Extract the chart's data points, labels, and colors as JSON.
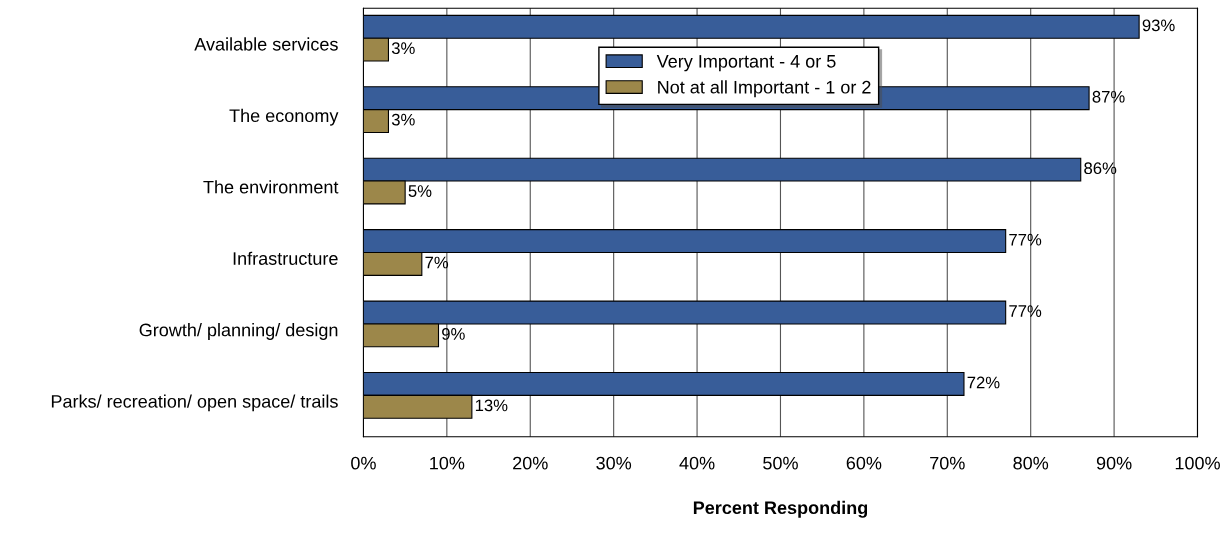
{
  "chart_data": {
    "type": "bar",
    "orientation": "horizontal",
    "xlabel": "Percent Responding",
    "categories": [
      "Available services",
      "The economy",
      "The environment",
      "Infrastructure",
      "Growth/ planning/ design",
      "Parks/ recreation/ open space/ trails"
    ],
    "series": [
      {
        "name": "Very Important - 4 or 5",
        "color": "#385d99",
        "values": [
          93,
          87,
          86,
          77,
          77,
          72
        ],
        "value_labels": [
          "93%",
          "87%",
          "86%",
          "77%",
          "77%",
          "72%"
        ]
      },
      {
        "name": "Not at all Important - 1 or 2",
        "color": "#9c874a",
        "values": [
          3,
          3,
          5,
          7,
          9,
          13
        ],
        "value_labels": [
          "3%",
          "3%",
          "5%",
          "7%",
          "9%",
          "13%"
        ]
      }
    ],
    "xlim": [
      0,
      100
    ],
    "xticks": [
      {
        "value": 0,
        "label": "0%"
      },
      {
        "value": 10,
        "label": "10%"
      },
      {
        "value": 20,
        "label": "20%"
      },
      {
        "value": 30,
        "label": "30%"
      },
      {
        "value": 40,
        "label": "40%"
      },
      {
        "value": 50,
        "label": "50%"
      },
      {
        "value": 60,
        "label": "60%"
      },
      {
        "value": 70,
        "label": "70%"
      },
      {
        "value": 80,
        "label": "80%"
      },
      {
        "value": 90,
        "label": "90%"
      },
      {
        "value": 100,
        "label": "100%"
      }
    ],
    "grid": "x",
    "legend": "top"
  }
}
